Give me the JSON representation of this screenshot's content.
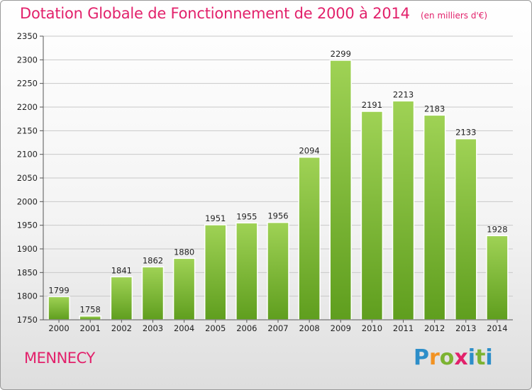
{
  "chart_data": {
    "type": "bar",
    "title": "Dotation Globale de Fonctionnement de 2000 à 2014",
    "subtitle": "(en milliers d'€)",
    "categories": [
      "2000",
      "2001",
      "2002",
      "2003",
      "2004",
      "2005",
      "2006",
      "2007",
      "2008",
      "2009",
      "2010",
      "2011",
      "2012",
      "2013",
      "2014"
    ],
    "values": [
      1799,
      1758,
      1841,
      1862,
      1880,
      1951,
      1955,
      1956,
      2094,
      2299,
      2191,
      2213,
      2183,
      2133,
      1928
    ],
    "ylim": [
      1750,
      2350
    ],
    "yticks": [
      1750,
      1800,
      1850,
      1900,
      1950,
      2000,
      2050,
      2100,
      2150,
      2200,
      2250,
      2300,
      2350
    ],
    "grid": true,
    "bar_color_top": "#9fd255",
    "bar_color_bottom": "#5f9e1e"
  },
  "footer": {
    "city": "MENNECY",
    "logo": {
      "p": "P",
      "r": "r",
      "o": "o",
      "x": "x",
      "i": "i",
      "t": "t",
      "i2": "i"
    }
  }
}
